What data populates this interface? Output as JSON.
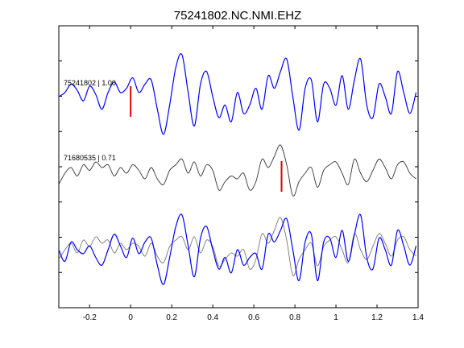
{
  "chart_data": {
    "type": "line",
    "title": "75241802.NC.NMI.EHZ",
    "xlabel": "",
    "ylabel": "",
    "xlim": [
      -0.35,
      1.4
    ],
    "x_ticks": [
      -0.2,
      0,
      0.2,
      0.4,
      0.6,
      0.8,
      1,
      1.2,
      1.4
    ],
    "x_tick_labels": [
      "-0.2",
      "0",
      "0.2",
      "0.4",
      "0.6",
      "0.8",
      "1",
      "1.2",
      "1.4"
    ],
    "grid": false,
    "trace_labels": [
      {
        "text": "75241802 | 1.00"
      },
      {
        "text": "71680535 | 0.71"
      }
    ],
    "colors": {
      "master": "#0000ff",
      "correlated": "#333333",
      "overlay_gray": "#777777",
      "pick": "#e00000"
    },
    "series": [
      {
        "color": "#0000ff",
        "x": [
          -0.35,
          -0.32,
          -0.29,
          -0.26,
          -0.23,
          -0.2,
          -0.17,
          -0.14,
          -0.11,
          -0.08,
          -0.05,
          -0.02,
          0.01,
          0.04,
          0.07,
          0.1,
          0.13,
          0.16,
          0.19,
          0.22,
          0.25,
          0.28,
          0.31,
          0.34,
          0.37,
          0.4,
          0.43,
          0.46,
          0.49,
          0.52,
          0.55,
          0.58,
          0.61,
          0.64,
          0.67,
          0.7,
          0.73,
          0.76,
          0.79,
          0.82,
          0.85,
          0.88,
          0.91,
          0.94,
          0.97,
          1.0,
          1.03,
          1.06,
          1.09,
          1.12,
          1.15,
          1.18,
          1.21,
          1.24,
          1.27,
          1.3,
          1.33,
          1.36,
          1.39
        ],
        "y": [
          0.0,
          0.1,
          0.3,
          0.15,
          -0.1,
          0.25,
          0.05,
          -0.3,
          0.1,
          0.35,
          0.1,
          0.2,
          0.45,
          0.1,
          0.3,
          0.4,
          -0.3,
          -0.9,
          -0.2,
          0.7,
          1.0,
          0.1,
          -0.7,
          0.3,
          0.6,
          0.0,
          -0.5,
          -0.2,
          -0.6,
          0.1,
          -0.4,
          -0.2,
          0.2,
          -0.3,
          0.5,
          0.2,
          0.6,
          0.9,
          0.0,
          -0.8,
          0.2,
          0.4,
          -0.6,
          0.3,
          0.2,
          -0.2,
          0.5,
          -0.3,
          0.4,
          0.9,
          -0.2,
          -0.5,
          0.3,
          0.0,
          -0.4,
          0.6,
          0.1,
          -0.4,
          0.1
        ]
      },
      {
        "color": "#333333",
        "x": [
          -0.35,
          -0.32,
          -0.29,
          -0.26,
          -0.23,
          -0.2,
          -0.17,
          -0.14,
          -0.11,
          -0.08,
          -0.05,
          -0.02,
          0.01,
          0.04,
          0.07,
          0.1,
          0.13,
          0.16,
          0.19,
          0.22,
          0.25,
          0.28,
          0.31,
          0.34,
          0.37,
          0.4,
          0.43,
          0.46,
          0.49,
          0.52,
          0.55,
          0.58,
          0.61,
          0.64,
          0.67,
          0.7,
          0.73,
          0.76,
          0.79,
          0.82,
          0.85,
          0.88,
          0.91,
          0.94,
          0.97,
          1.0,
          1.03,
          1.06,
          1.09,
          1.12,
          1.15,
          1.18,
          1.21,
          1.24,
          1.27,
          1.3,
          1.33,
          1.36,
          1.39
        ],
        "y": [
          -0.4,
          0.0,
          0.2,
          -0.1,
          0.3,
          0.1,
          0.4,
          0.2,
          0.3,
          -0.1,
          0.2,
          0.0,
          0.3,
          0.1,
          -0.2,
          0.2,
          -0.2,
          -0.4,
          0.1,
          0.3,
          0.5,
          0.0,
          0.4,
          -0.1,
          0.3,
          0.1,
          -0.6,
          -0.3,
          -0.1,
          -0.2,
          0.0,
          -0.6,
          -0.3,
          0.5,
          0.2,
          0.6,
          1.0,
          0.3,
          -0.8,
          -0.3,
          0.0,
          0.2,
          -0.5,
          0.1,
          0.3,
          0.4,
          0.0,
          -0.4,
          0.5,
          0.0,
          -0.3,
          0.1,
          0.5,
          0.2,
          -0.2,
          0.3,
          0.4,
          0.0,
          -0.2
        ]
      },
      {
        "color": "#0000ff",
        "x": [
          -0.35,
          -0.32,
          -0.29,
          -0.26,
          -0.23,
          -0.2,
          -0.17,
          -0.14,
          -0.11,
          -0.08,
          -0.05,
          -0.02,
          0.01,
          0.04,
          0.07,
          0.1,
          0.13,
          0.16,
          0.19,
          0.22,
          0.25,
          0.28,
          0.31,
          0.34,
          0.37,
          0.4,
          0.43,
          0.46,
          0.49,
          0.52,
          0.55,
          0.58,
          0.61,
          0.64,
          0.67,
          0.7,
          0.73,
          0.76,
          0.79,
          0.82,
          0.85,
          0.88,
          0.91,
          0.94,
          0.97,
          1.0,
          1.03,
          1.06,
          1.09,
          1.12,
          1.15,
          1.18,
          1.21,
          1.24,
          1.27,
          1.3,
          1.33,
          1.36,
          1.39
        ],
        "y": [
          0.0,
          -0.3,
          0.2,
          0.0,
          -0.1,
          0.1,
          -0.2,
          -0.4,
          0.0,
          0.4,
          0.1,
          -0.2,
          0.3,
          -0.1,
          0.2,
          0.3,
          -0.4,
          -0.9,
          -0.2,
          0.6,
          0.9,
          0.1,
          -0.7,
          0.3,
          0.6,
          0.0,
          -0.5,
          -0.2,
          -0.6,
          0.0,
          -0.4,
          -0.2,
          -0.1,
          -0.5,
          0.4,
          0.2,
          0.5,
          0.8,
          0.0,
          -0.8,
          0.2,
          0.4,
          -0.8,
          0.2,
          0.3,
          -0.2,
          0.5,
          -0.3,
          0.4,
          0.9,
          -0.2,
          -0.5,
          0.3,
          0.0,
          -0.4,
          0.5,
          0.1,
          -0.4,
          0.1
        ]
      },
      {
        "color": "#777777",
        "x": [
          -0.35,
          -0.32,
          -0.29,
          -0.26,
          -0.23,
          -0.2,
          -0.17,
          -0.14,
          -0.11,
          -0.08,
          -0.05,
          -0.02,
          0.01,
          0.04,
          0.07,
          0.1,
          0.13,
          0.16,
          0.19,
          0.22,
          0.25,
          0.28,
          0.31,
          0.34,
          0.37,
          0.4,
          0.43,
          0.46,
          0.49,
          0.52,
          0.55,
          0.58,
          0.61,
          0.64,
          0.67,
          0.7,
          0.73,
          0.76,
          0.79,
          0.82,
          0.85,
          0.88,
          0.91,
          0.94,
          0.97,
          1.0,
          1.03,
          1.06,
          1.09,
          1.12,
          1.15,
          1.18,
          1.21,
          1.24,
          1.27,
          1.3,
          1.33,
          1.36,
          1.39
        ],
        "y": [
          -0.3,
          0.0,
          0.2,
          -0.1,
          0.3,
          0.1,
          0.4,
          0.2,
          0.3,
          -0.1,
          0.2,
          0.0,
          0.2,
          0.1,
          -0.2,
          0.2,
          -0.2,
          -0.4,
          0.1,
          0.3,
          0.4,
          0.0,
          0.4,
          -0.1,
          0.3,
          0.1,
          -0.5,
          -0.3,
          -0.1,
          -0.2,
          0.0,
          -0.6,
          -0.3,
          0.5,
          0.2,
          0.6,
          1.0,
          0.3,
          -0.8,
          -0.3,
          0.0,
          0.2,
          -0.5,
          0.1,
          0.3,
          0.4,
          0.0,
          -0.4,
          0.5,
          0.0,
          -0.3,
          0.1,
          0.5,
          0.2,
          -0.2,
          0.3,
          0.4,
          0.0,
          -0.2
        ]
      }
    ],
    "picks": [
      {
        "x": 0.0
      },
      {
        "x": 0.735
      }
    ]
  }
}
